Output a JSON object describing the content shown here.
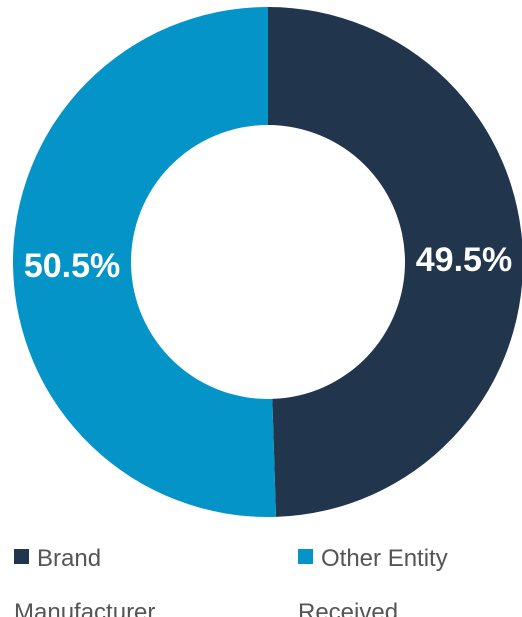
{
  "chart_data": {
    "type": "pie",
    "donut": true,
    "categories": [
      "Brand Manufacturer",
      "Other Entity Received"
    ],
    "values": [
      49.5,
      50.5
    ],
    "value_labels": [
      "49.5%",
      "50.5%"
    ],
    "colors": [
      "#21354d",
      "#0494c8"
    ],
    "legend": {
      "placement": "bottom",
      "entries": [
        {
          "line1": "Brand",
          "line2": "Manufacturer"
        },
        {
          "line1": "Other Entity",
          "line2": "Received"
        }
      ]
    }
  }
}
